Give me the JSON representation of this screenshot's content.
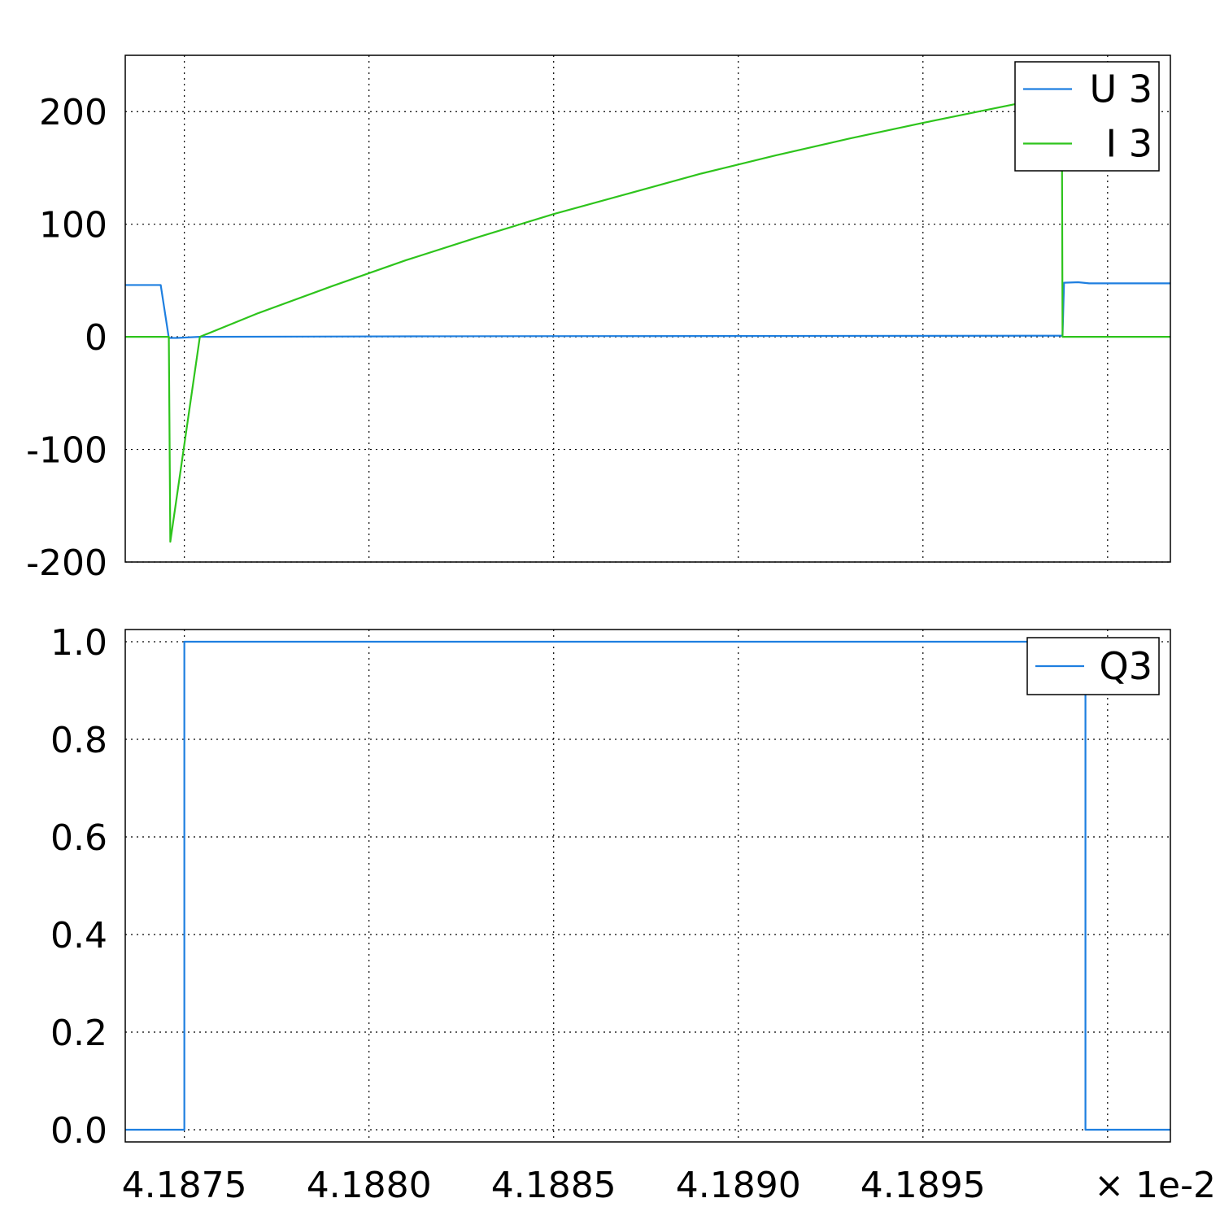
{
  "chart_data": [
    {
      "type": "line",
      "title": "",
      "xlabel": "",
      "ylabel": "",
      "xlim": [
        4.18734,
        4.19017
      ],
      "ylim": [
        -200,
        250
      ],
      "x_scale_note": "× 1e-2",
      "grid": true,
      "legend_position": "top-right",
      "y_ticks": [
        {
          "value": 200,
          "label": "200"
        },
        {
          "value": 100,
          "label": "100"
        },
        {
          "value": 0,
          "label": "0"
        },
        {
          "value": -100,
          "label": "-100"
        },
        {
          "value": -200,
          "label": "-200"
        }
      ],
      "x_grid": [
        4.1875,
        4.188,
        4.1885,
        4.189,
        4.1895,
        4.19
      ],
      "series": [
        {
          "name": "U 3",
          "color": "#1e7fe0",
          "points": [
            [
              4.18734,
              46
            ],
            [
              4.187436,
              46
            ],
            [
              4.187458,
              -1
            ],
            [
              4.18748,
              -1
            ],
            [
              4.18754,
              0
            ],
            [
              4.1882,
              0.5
            ],
            [
              4.1898,
              1
            ],
            [
              4.189878,
              1
            ],
            [
              4.189882,
              48
            ],
            [
              4.18992,
              48.5
            ],
            [
              4.18995,
              47.5
            ],
            [
              4.19017,
              47.5
            ]
          ]
        },
        {
          "name": "I 3",
          "color": "#2ec41c",
          "points": [
            [
              4.18734,
              0
            ],
            [
              4.187458,
              0
            ],
            [
              4.187462,
              -182
            ],
            [
              4.187542,
              0
            ],
            [
              4.1877,
              21
            ],
            [
              4.1879,
              45
            ],
            [
              4.1881,
              68
            ],
            [
              4.1883,
              89
            ],
            [
              4.1885,
              109
            ],
            [
              4.1887,
              127
            ],
            [
              4.1889,
              145
            ],
            [
              4.1891,
              161
            ],
            [
              4.1893,
              176
            ],
            [
              4.1895,
              190
            ],
            [
              4.18965,
              200
            ],
            [
              4.1898,
              210
            ],
            [
              4.189876,
              215
            ],
            [
              4.189878,
              0
            ],
            [
              4.19017,
              0
            ]
          ]
        }
      ]
    },
    {
      "type": "line",
      "title": "",
      "xlabel": "",
      "ylabel": "",
      "xlim": [
        4.18734,
        4.19017
      ],
      "ylim": [
        -0.025,
        1.025
      ],
      "grid": true,
      "legend_position": "top-right",
      "y_ticks": [
        {
          "value": 1.0,
          "label": "1.0"
        },
        {
          "value": 0.8,
          "label": "0.8"
        },
        {
          "value": 0.6,
          "label": "0.6"
        },
        {
          "value": 0.4,
          "label": "0.4"
        },
        {
          "value": 0.2,
          "label": "0.2"
        },
        {
          "value": 0.0,
          "label": "0.0"
        }
      ],
      "x_ticks": [
        {
          "value": 4.1875,
          "label": "4.1875"
        },
        {
          "value": 4.188,
          "label": "4.1880"
        },
        {
          "value": 4.1885,
          "label": "4.1885"
        },
        {
          "value": 4.189,
          "label": "4.1890"
        },
        {
          "value": 4.1895,
          "label": "4.1895"
        }
      ],
      "x_grid": [
        4.1875,
        4.188,
        4.1885,
        4.189,
        4.1895,
        4.19
      ],
      "series": [
        {
          "name": "Q3",
          "color": "#1e7fe0",
          "points": [
            [
              4.18734,
              0
            ],
            [
              4.1875,
              0
            ],
            [
              4.1875,
              1
            ],
            [
              4.18994,
              1
            ],
            [
              4.18994,
              0
            ],
            [
              4.19017,
              0
            ]
          ]
        }
      ]
    }
  ]
}
